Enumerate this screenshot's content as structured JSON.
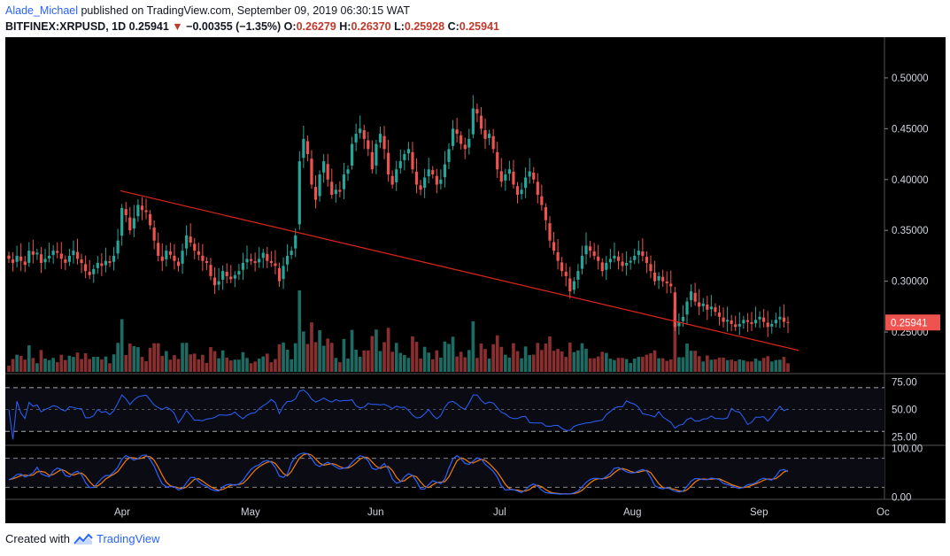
{
  "header": {
    "author": "Alade_Michael",
    "published_text": " published on TradingView.com, September 09, 2019 06:30:15 WAT"
  },
  "symbol": {
    "name": "BITFINEX:XRPUSD, 1D",
    "last": "0.25941",
    "change": "−0.00355 (−1.35%)",
    "o_label": "O:",
    "o": "0.26279",
    "h_label": "H:",
    "h": "0.26370",
    "l_label": "L:",
    "l": "0.25928",
    "c_label": "C:",
    "c": "0.25941"
  },
  "footer": {
    "created_with": "Created with",
    "brand": "TradingView"
  },
  "colors": {
    "up": "#26a69a",
    "down": "#ef5350",
    "up_vol": "#1e6b63",
    "down_vol": "#8a2f2f",
    "trend": "#e0251b",
    "rsi": "#2962ff",
    "stoch_k": "#2962ff",
    "stoch_d": "#f57c00"
  },
  "chart_data": {
    "type": "candlestick",
    "price_axis": {
      "ticks": [
        "0.50000",
        "0.45000",
        "0.40000",
        "0.35000",
        "0.30000",
        "0.25000"
      ],
      "ylim": [
        0.21,
        0.54
      ]
    },
    "last_price_label": "0.25941",
    "time_axis": {
      "ticks": [
        "Apr",
        "May",
        "Jun",
        "Jul",
        "Aug",
        "Sep",
        "Oc"
      ]
    },
    "close": [
      0.322,
      0.318,
      0.325,
      0.32,
      0.316,
      0.33,
      0.326,
      0.328,
      0.318,
      0.322,
      0.325,
      0.33,
      0.328,
      0.322,
      0.318,
      0.325,
      0.33,
      0.322,
      0.318,
      0.31,
      0.306,
      0.312,
      0.318,
      0.315,
      0.32,
      0.318,
      0.325,
      0.34,
      0.372,
      0.365,
      0.35,
      0.362,
      0.375,
      0.37,
      0.368,
      0.355,
      0.34,
      0.325,
      0.32,
      0.33,
      0.326,
      0.32,
      0.315,
      0.33,
      0.345,
      0.338,
      0.33,
      0.326,
      0.32,
      0.318,
      0.305,
      0.296,
      0.3,
      0.31,
      0.305,
      0.302,
      0.306,
      0.31,
      0.318,
      0.322,
      0.32,
      0.318,
      0.322,
      0.328,
      0.32,
      0.318,
      0.315,
      0.3,
      0.315,
      0.325,
      0.33,
      0.345,
      0.418,
      0.44,
      0.425,
      0.395,
      0.38,
      0.405,
      0.418,
      0.4,
      0.385,
      0.39,
      0.388,
      0.405,
      0.41,
      0.435,
      0.445,
      0.45,
      0.44,
      0.43,
      0.41,
      0.435,
      0.445,
      0.43,
      0.405,
      0.395,
      0.41,
      0.418,
      0.425,
      0.43,
      0.41,
      0.395,
      0.39,
      0.402,
      0.41,
      0.405,
      0.395,
      0.4,
      0.415,
      0.43,
      0.45,
      0.445,
      0.435,
      0.43,
      0.44,
      0.47,
      0.465,
      0.45,
      0.44,
      0.445,
      0.43,
      0.41,
      0.398,
      0.405,
      0.41,
      0.395,
      0.385,
      0.39,
      0.402,
      0.408,
      0.4,
      0.385,
      0.375,
      0.36,
      0.34,
      0.33,
      0.32,
      0.31,
      0.305,
      0.29,
      0.3,
      0.31,
      0.325,
      0.335,
      0.33,
      0.325,
      0.32,
      0.31,
      0.318,
      0.322,
      0.325,
      0.32,
      0.315,
      0.318,
      0.32,
      0.325,
      0.33,
      0.325,
      0.318,
      0.31,
      0.3,
      0.305,
      0.3,
      0.298,
      0.295,
      0.255,
      0.26,
      0.265,
      0.28,
      0.29,
      0.28,
      0.275,
      0.278,
      0.272,
      0.275,
      0.27,
      0.265,
      0.26,
      0.262,
      0.258,
      0.255,
      0.258,
      0.262,
      0.26,
      0.258,
      0.262,
      0.265,
      0.26,
      0.255,
      0.258,
      0.262,
      0.265,
      0.26,
      0.259
    ],
    "trendline": {
      "from": [
        0.389,
        0.389
      ],
      "to": [
        0.232,
        0.232
      ]
    },
    "indicators": {
      "rsi": {
        "ticks": [
          "75.00",
          "50.00",
          "25.00"
        ],
        "levels": [
          70,
          30
        ],
        "ylim": [
          18,
          82
        ]
      },
      "stoch": {
        "ticks": [
          "100.00",
          "0.00"
        ],
        "levels": [
          80,
          20
        ],
        "ylim": [
          -5,
          105
        ]
      }
    }
  }
}
